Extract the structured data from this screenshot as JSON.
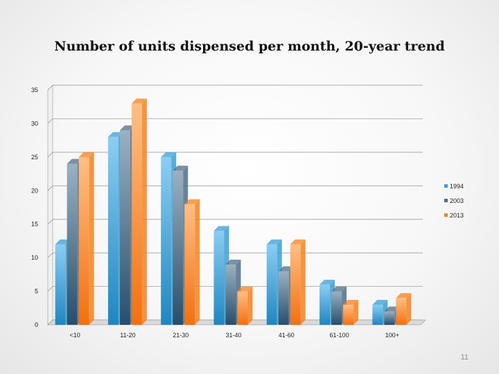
{
  "slide_number": "11",
  "colors": {
    "1994": "#3a9fd4",
    "2003": "#4d6f88",
    "2013": "#f5821f"
  },
  "chart_data": {
    "type": "bar",
    "title": "Number of units dispensed per month, 20-year trend",
    "categories": [
      "<10",
      "11-20",
      "21-30",
      "31-40",
      "41-60",
      "61-100",
      "100+"
    ],
    "series": [
      {
        "name": "1994",
        "values": [
          12,
          28,
          25,
          14,
          12,
          6,
          3
        ]
      },
      {
        "name": "2003",
        "values": [
          24,
          29,
          23,
          9,
          8,
          5,
          2
        ]
      },
      {
        "name": "2013",
        "values": [
          25,
          33,
          18,
          5,
          12,
          3,
          4
        ]
      }
    ],
    "ylim": [
      0,
      35
    ],
    "yticks": [
      "0",
      "5",
      "10",
      "15",
      "20",
      "25",
      "30",
      "35"
    ],
    "xlabel": "",
    "ylabel": "",
    "grid": true,
    "legend": "right",
    "style": "3d-clustered"
  }
}
